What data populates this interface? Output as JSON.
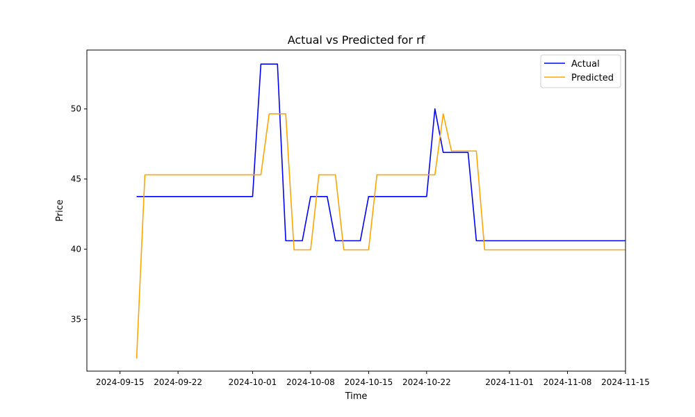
{
  "chart_data": {
    "type": "line",
    "title": "Actual vs Predicted for rf",
    "xlabel": "Time",
    "ylabel": "Price",
    "xlim": [
      "2024-09-11",
      "2024-11-15"
    ],
    "ylim": [
      31.3,
      54.2
    ],
    "x_ticks": [
      "2024-09-15",
      "2024-09-22",
      "2024-10-01",
      "2024-10-08",
      "2024-10-15",
      "2024-10-22",
      "2024-11-01",
      "2024-11-08",
      "2024-11-15"
    ],
    "y_ticks": [
      35,
      40,
      45,
      50
    ],
    "grid": false,
    "legend": "top-right",
    "series": [
      {
        "name": "Actual",
        "color": "#0000ff",
        "points": [
          [
            "2024-09-17",
            43.75
          ],
          [
            "2024-09-18",
            43.75
          ],
          [
            "2024-10-01",
            43.75
          ],
          [
            "2024-10-02",
            53.2
          ],
          [
            "2024-10-04",
            53.2
          ],
          [
            "2024-10-05",
            40.6
          ],
          [
            "2024-10-07",
            40.6
          ],
          [
            "2024-10-08",
            43.75
          ],
          [
            "2024-10-10",
            43.75
          ],
          [
            "2024-10-11",
            40.6
          ],
          [
            "2024-10-14",
            40.6
          ],
          [
            "2024-10-15",
            43.75
          ],
          [
            "2024-10-22",
            43.75
          ],
          [
            "2024-10-23",
            50.0
          ],
          [
            "2024-10-24",
            46.9
          ],
          [
            "2024-10-27",
            46.9
          ],
          [
            "2024-10-28",
            40.6
          ],
          [
            "2024-11-15",
            40.6
          ]
        ]
      },
      {
        "name": "Predicted",
        "color": "#ffa500",
        "points": [
          [
            "2024-09-17",
            32.2
          ],
          [
            "2024-09-18",
            45.3
          ],
          [
            "2024-10-02",
            45.3
          ],
          [
            "2024-10-03",
            49.65
          ],
          [
            "2024-10-05",
            49.65
          ],
          [
            "2024-10-06",
            39.95
          ],
          [
            "2024-10-08",
            39.95
          ],
          [
            "2024-10-09",
            45.3
          ],
          [
            "2024-10-11",
            45.3
          ],
          [
            "2024-10-12",
            39.95
          ],
          [
            "2024-10-15",
            39.95
          ],
          [
            "2024-10-16",
            45.3
          ],
          [
            "2024-10-23",
            45.3
          ],
          [
            "2024-10-24",
            49.65
          ],
          [
            "2024-10-25",
            47.0
          ],
          [
            "2024-10-28",
            47.0
          ],
          [
            "2024-10-29",
            39.95
          ],
          [
            "2024-11-15",
            39.95
          ]
        ]
      }
    ]
  }
}
